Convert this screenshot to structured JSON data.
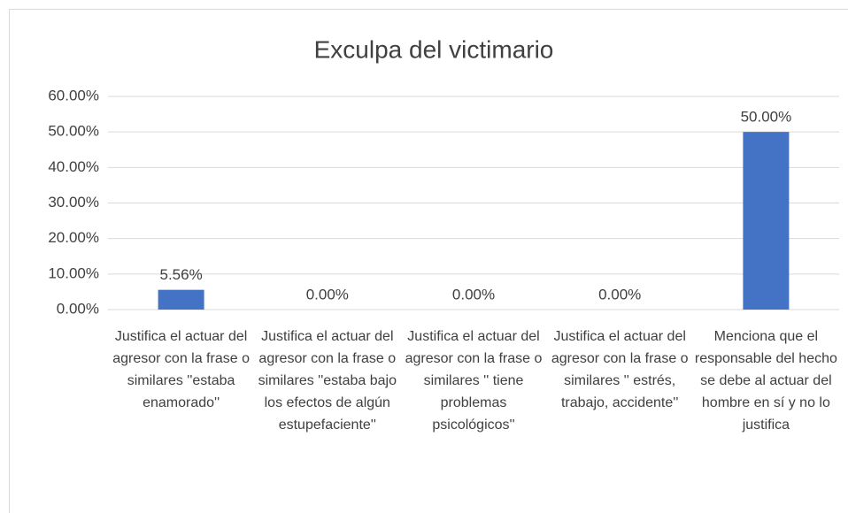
{
  "chart_data": {
    "type": "bar",
    "title": "Exculpa del victimario",
    "categories": [
      "Justifica el actuar del agresor con la frase o similares ''estaba enamorado''",
      "Justifica el actuar del agresor con la frase o similares ''estaba bajo los efectos de algún estupefaciente''",
      "Justifica el actuar del agresor con la frase o similares '' tiene problemas psicológicos''",
      "Justifica el actuar del agresor con la frase o similares '' estrés, trabajo, accidente''",
      "Menciona que el responsable del hecho se debe al actuar del hombre en sí y no lo justifica"
    ],
    "values": [
      5.56,
      0,
      0,
      0,
      50
    ],
    "value_labels": [
      "5.56%",
      "0.00%",
      "0.00%",
      "0.00%",
      "50.00%"
    ],
    "color": "#4472c4",
    "ylim": [
      0,
      60
    ],
    "yticks": [
      {
        "value": 0,
        "label": "0.00%"
      },
      {
        "value": 10,
        "label": "10.00%"
      },
      {
        "value": 20,
        "label": "20.00%"
      },
      {
        "value": 30,
        "label": "30.00%"
      },
      {
        "value": 40,
        "label": "40.00%"
      },
      {
        "value": 50,
        "label": "50.00%"
      },
      {
        "value": 60,
        "label": "60.00%"
      }
    ],
    "grid": true
  }
}
